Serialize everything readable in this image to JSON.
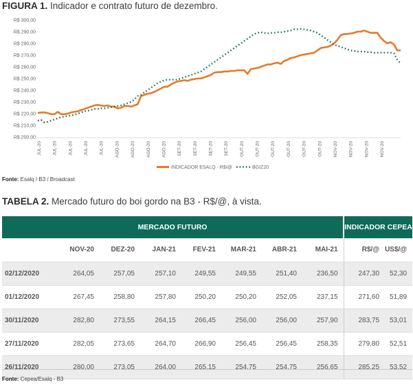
{
  "figure": {
    "label": "FIGURA 1.",
    "title": "Indicador e contrato futuro de dezembro.",
    "source_label": "Fonte:",
    "source_text": "Esalq / B3 / Broadcast"
  },
  "chart_data": {
    "type": "line",
    "y_ticks": [
      "R$ 300,00",
      "R$ 290,00",
      "R$ 280,00",
      "R$ 270,00",
      "R$ 260,00",
      "R$ 250,00",
      "R$ 240,00",
      "R$ 230,00",
      "R$ 220,00",
      "R$ 210,00",
      "R$ 200,00"
    ],
    "ylim": [
      200,
      300
    ],
    "x_ticks": [
      "JUL-20",
      "JUL-20",
      "JUL-20",
      "JUL-20",
      "JUL-20",
      "AGO-20",
      "AGO-20",
      "AGO-20",
      "AGO-20",
      "SET-20",
      "SET-20",
      "SET-20",
      "SET-20",
      "OUT-20",
      "OUT-20",
      "OUT-20",
      "OUT-20",
      "OUT-20",
      "OUT-20",
      "NOV-20",
      "NOV-20",
      "NOV-20",
      "NOV-20"
    ],
    "x": [
      "1",
      "2",
      "3",
      "4",
      "5",
      "6",
      "7",
      "8",
      "9",
      "10",
      "11",
      "12",
      "13",
      "14",
      "15",
      "16",
      "17",
      "18",
      "19",
      "20",
      "21",
      "22",
      "23",
      "24",
      "25",
      "26",
      "27",
      "28",
      "29",
      "30",
      "31",
      "32",
      "33",
      "34",
      "35",
      "36",
      "37",
      "38",
      "39",
      "40",
      "41",
      "42",
      "43",
      "44",
      "45",
      "46",
      "47",
      "48",
      "49",
      "50",
      "51",
      "52",
      "53",
      "54",
      "55",
      "56",
      "57",
      "58",
      "59",
      "60",
      "61",
      "62",
      "63",
      "64",
      "65",
      "66",
      "67",
      "68",
      "69",
      "70",
      "71",
      "72",
      "73",
      "74",
      "75",
      "76",
      "77",
      "78",
      "79",
      "80",
      "81",
      "82",
      "83",
      "84",
      "85",
      "86",
      "87",
      "88",
      "89",
      "90",
      "91",
      "92",
      "93",
      "94",
      "95",
      "96",
      "97",
      "98",
      "99",
      "100",
      "101",
      "102",
      "103",
      "104",
      "105",
      "106",
      "107",
      "108",
      "109",
      "110"
    ],
    "series": [
      {
        "name": "INDICADOR ESALQ - R$/@",
        "color": "#e8782a",
        "style": "solid",
        "values": [
          220.5,
          221,
          221,
          220.5,
          219.5,
          219.5,
          221.5,
          219.5,
          219.5,
          220,
          221,
          221.5,
          222,
          223,
          224,
          225,
          226,
          227,
          227.5,
          227,
          226.5,
          227,
          226,
          226,
          224.5,
          225,
          226.5,
          226.5,
          226,
          227,
          228,
          235,
          236,
          237,
          237.5,
          238.5,
          240,
          241.5,
          243,
          243,
          245,
          246.5,
          247.5,
          248,
          248.5,
          248,
          249,
          249.5,
          250,
          250,
          251,
          252,
          253,
          255,
          255.5,
          255.5,
          256,
          256,
          256.5,
          256.5,
          257,
          257,
          257,
          254,
          258,
          258.5,
          259,
          260,
          261,
          262,
          262,
          263,
          263.5,
          262.5,
          265,
          266,
          267.5,
          268,
          269,
          270,
          270.5,
          271,
          271.5,
          272,
          274,
          276,
          276.5,
          277,
          278,
          280,
          283,
          287,
          288,
          288,
          288.5,
          289,
          290,
          290,
          291,
          290,
          289,
          289,
          289,
          285,
          282,
          280,
          281,
          279,
          274,
          274
        ]
      },
      {
        "name": "BGIZ20",
        "color": "#1d6b4a",
        "style": "dotted",
        "values": [
          214,
          214.5,
          212.5,
          213,
          214,
          215,
          216,
          217,
          217.5,
          218,
          218.5,
          219,
          220,
          221,
          222,
          222.5,
          223,
          224,
          224,
          224.5,
          224.5,
          225,
          225.5,
          226,
          226.5,
          227,
          228,
          229,
          230,
          232,
          235,
          236,
          238,
          240,
          242,
          244,
          246,
          247.5,
          248.5,
          249,
          249,
          249,
          249,
          250,
          251,
          252,
          253,
          254,
          255,
          256,
          258,
          260,
          262,
          264,
          266,
          268,
          270,
          272,
          274,
          276,
          278,
          280,
          282,
          284,
          286,
          288,
          289,
          289.5,
          289,
          288.5,
          289,
          289,
          289.5,
          289.5,
          290,
          290.5,
          291,
          292,
          292,
          292.5,
          292,
          291.5,
          291,
          290,
          289,
          287,
          285,
          283,
          281,
          279,
          278,
          277,
          276,
          275,
          274,
          273.5,
          273,
          273,
          273,
          272.5,
          272.5,
          272,
          272,
          272,
          272,
          272,
          272,
          271.5,
          266,
          263
        ]
      }
    ],
    "legend_placement": "bottom"
  },
  "table": {
    "label": "TABELA 2.",
    "title": "Mercado futuro do boi gordo na B3 - R$/@, à vista.",
    "group_headers": [
      "MERCADO FUTURO",
      "INDICADOR CEPEA"
    ],
    "columns": [
      "",
      "NOV-20",
      "DEZ-20",
      "JAN-21",
      "FEV-21",
      "MAR-21",
      "ABR-21",
      "MAI-21",
      "R$/@",
      "US$/@"
    ],
    "rows": [
      {
        "date": "02/12/2020",
        "values": [
          "264,05",
          "257,05",
          "257,10",
          "249,55",
          "249,55",
          "251,40",
          "236,50",
          "247,30",
          "52,30"
        ]
      },
      {
        "date": "01/12/2020",
        "values": [
          "267,45",
          "258,80",
          "257,80",
          "250,20",
          "250,20",
          "252,05",
          "237,15",
          "271,60",
          "51,89"
        ]
      },
      {
        "date": "30/11/2020",
        "values": [
          "282,80",
          "273,55",
          "264,15",
          "266,45",
          "256,00",
          "256,00",
          "257,90",
          "283,75",
          "53,01"
        ]
      },
      {
        "date": "27/11/2020",
        "values": [
          "282,05",
          "273,65",
          "264,70",
          "266,90",
          "256,45",
          "256,45",
          "258,35",
          "279,80",
          "52,51"
        ]
      },
      {
        "date": "26/11/2020",
        "values": [
          "280,00",
          "273,05",
          "264,00",
          "265,15",
          "254,75",
          "254,75",
          "256,65",
          "285,25",
          "53,52"
        ]
      }
    ],
    "source_label": "Fonte:",
    "source_text": "Cepea/Esalq - B3"
  }
}
